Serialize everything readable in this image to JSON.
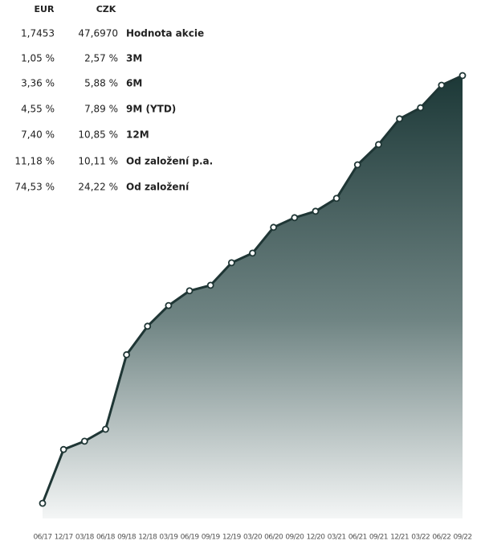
{
  "table": {
    "headers": [
      "EUR",
      "CZK"
    ],
    "rows": [
      [
        "1,7453",
        "47,6970",
        "Hodnota akcie"
      ],
      [
        "1,05 %",
        "2,57 %",
        "3M"
      ],
      [
        "3,36 %",
        "5,88 %",
        "6M"
      ],
      [
        "4,55 %",
        "7,89 %",
        "9M (YTD)"
      ],
      [
        "7,40 %",
        "10,85 %",
        "12M"
      ],
      [
        "11,18 %",
        "10,11 %",
        "Od založení p.a."
      ],
      [
        "74,53 %",
        "24,22 %",
        "Od založení"
      ]
    ]
  },
  "chart_data": {
    "type": "area",
    "categories": [
      "06/17",
      "12/17",
      "03/18",
      "06/18",
      "09/18",
      "12/18",
      "03/19",
      "06/19",
      "09/19",
      "12/19",
      "03/20",
      "06/20",
      "09/20",
      "12/20",
      "03/21",
      "06/21",
      "09/21",
      "12/21",
      "03/22",
      "06/22",
      "09/22"
    ],
    "values": [
      38.4,
      39.57,
      39.75,
      40.01,
      41.63,
      42.25,
      42.7,
      43.02,
      43.14,
      43.63,
      43.84,
      44.4,
      44.61,
      44.75,
      45.03,
      45.76,
      46.2,
      46.76,
      47.0,
      47.49,
      47.7
    ],
    "color": "#1f3635",
    "ylim": [
      38.07,
      47.77
    ]
  }
}
